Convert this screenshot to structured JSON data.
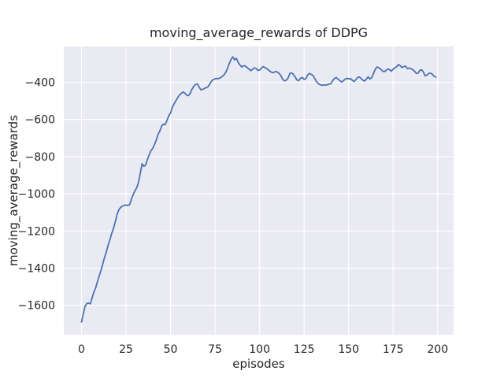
{
  "figure": {
    "background": "#ffffff"
  },
  "chart_data": {
    "type": "line",
    "title": "moving_average_rewards of DDPG",
    "xlabel": "episodes",
    "ylabel": "moving_average_rewards",
    "grid": true,
    "legend": false,
    "xlim": [
      -9.95,
      208.95
    ],
    "ylim": [
      -1758,
      -207
    ],
    "xticks": {
      "values": [
        0,
        25,
        50,
        75,
        100,
        125,
        150,
        175,
        200
      ],
      "labels": [
        "0",
        "25",
        "50",
        "75",
        "100",
        "125",
        "150",
        "175",
        "200"
      ]
    },
    "yticks": {
      "values": [
        -400,
        -600,
        -800,
        -1000,
        -1200,
        -1400,
        -1600
      ],
      "labels": [
        "−400",
        "−600",
        "−800",
        "−1000",
        "−1200",
        "−1400",
        "−1600"
      ]
    },
    "style": {
      "plot_bg": "#EAEAF2",
      "grid_color": "#FFFFFF",
      "text_color": "#262626",
      "line_color": "#4C72B0",
      "line_width": 1.8
    },
    "series": [
      {
        "name": "moving_average_rewards",
        "color": "#4C72B0",
        "x_start": 0,
        "x_step": 1,
        "values": [
          -1690,
          -1645,
          -1605,
          -1590,
          -1588,
          -1592,
          -1558,
          -1528,
          -1505,
          -1470,
          -1440,
          -1410,
          -1375,
          -1340,
          -1310,
          -1275,
          -1245,
          -1212,
          -1185,
          -1150,
          -1110,
          -1085,
          -1073,
          -1066,
          -1062,
          -1060,
          -1063,
          -1058,
          -1030,
          -1005,
          -983,
          -968,
          -938,
          -890,
          -838,
          -852,
          -845,
          -815,
          -790,
          -768,
          -755,
          -735,
          -710,
          -680,
          -662,
          -635,
          -625,
          -628,
          -605,
          -580,
          -565,
          -535,
          -515,
          -500,
          -483,
          -468,
          -460,
          -452,
          -458,
          -468,
          -472,
          -460,
          -438,
          -422,
          -412,
          -409,
          -424,
          -440,
          -438,
          -433,
          -429,
          -424,
          -410,
          -393,
          -386,
          -381,
          -379,
          -380,
          -375,
          -369,
          -360,
          -346,
          -325,
          -298,
          -277,
          -263,
          -280,
          -271,
          -293,
          -307,
          -317,
          -311,
          -312,
          -321,
          -328,
          -337,
          -331,
          -322,
          -325,
          -336,
          -334,
          -324,
          -316,
          -320,
          -326,
          -334,
          -341,
          -348,
          -347,
          -341,
          -345,
          -352,
          -365,
          -384,
          -392,
          -389,
          -377,
          -352,
          -349,
          -358,
          -372,
          -387,
          -391,
          -378,
          -374,
          -384,
          -380,
          -360,
          -352,
          -357,
          -363,
          -380,
          -396,
          -407,
          -413,
          -416,
          -414,
          -415,
          -413,
          -410,
          -407,
          -392,
          -380,
          -374,
          -383,
          -390,
          -398,
          -392,
          -383,
          -378,
          -381,
          -380,
          -388,
          -396,
          -387,
          -374,
          -371,
          -379,
          -389,
          -393,
          -382,
          -370,
          -382,
          -374,
          -351,
          -329,
          -317,
          -322,
          -329,
          -339,
          -343,
          -336,
          -328,
          -332,
          -340,
          -329,
          -322,
          -316,
          -304,
          -311,
          -321,
          -315,
          -313,
          -326,
          -323,
          -326,
          -332,
          -340,
          -352,
          -350,
          -336,
          -332,
          -345,
          -365,
          -361,
          -352,
          -350,
          -356,
          -367,
          -372
        ]
      }
    ]
  }
}
